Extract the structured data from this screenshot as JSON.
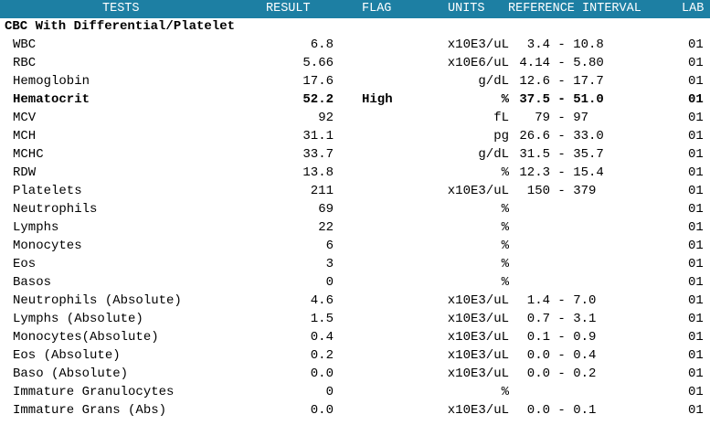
{
  "headers": {
    "tests": "TESTS",
    "result": "RESULT",
    "flag": "FLAG",
    "units": "UNITS",
    "reference": "REFERENCE INTERVAL",
    "lab": "LAB"
  },
  "section_title": "CBC With Differential/Platelet",
  "rows": [
    {
      "test": "WBC",
      "result": "6.8",
      "flag": "",
      "units": "x10E3/uL",
      "ref": "  3.4 - 10.8",
      "lab": "01"
    },
    {
      "test": "RBC",
      "result": "5.66",
      "flag": "",
      "units": "x10E6/uL",
      "ref": " 4.14 - 5.80",
      "lab": "01"
    },
    {
      "test": "Hemoglobin",
      "result": "17.6",
      "flag": "",
      "units": "g/dL",
      "ref": " 12.6 - 17.7",
      "lab": "01"
    },
    {
      "test": "Hematocrit",
      "result": "52.2",
      "flag": "High",
      "units": "%",
      "ref": " 37.5 - 51.0",
      "lab": "01"
    },
    {
      "test": "MCV",
      "result": "92",
      "flag": "",
      "units": "fL",
      "ref": "   79 - 97",
      "lab": "01"
    },
    {
      "test": "MCH",
      "result": "31.1",
      "flag": "",
      "units": "pg",
      "ref": " 26.6 - 33.0",
      "lab": "01"
    },
    {
      "test": "MCHC",
      "result": "33.7",
      "flag": "",
      "units": "g/dL",
      "ref": " 31.5 - 35.7",
      "lab": "01"
    },
    {
      "test": "RDW",
      "result": "13.8",
      "flag": "",
      "units": "%",
      "ref": " 12.3 - 15.4",
      "lab": "01"
    },
    {
      "test": "Platelets",
      "result": "211",
      "flag": "",
      "units": "x10E3/uL",
      "ref": "  150 - 379",
      "lab": "01"
    },
    {
      "test": "Neutrophils",
      "result": "69",
      "flag": "",
      "units": "%",
      "ref": "",
      "lab": "01"
    },
    {
      "test": "Lymphs",
      "result": "22",
      "flag": "",
      "units": "%",
      "ref": "",
      "lab": "01"
    },
    {
      "test": "Monocytes",
      "result": "6",
      "flag": "",
      "units": "%",
      "ref": "",
      "lab": "01"
    },
    {
      "test": "Eos",
      "result": "3",
      "flag": "",
      "units": "%",
      "ref": "",
      "lab": "01"
    },
    {
      "test": "Basos",
      "result": "0",
      "flag": "",
      "units": "%",
      "ref": "",
      "lab": "01"
    },
    {
      "test": "Neutrophils (Absolute)",
      "result": "4.6",
      "flag": "",
      "units": "x10E3/uL",
      "ref": "  1.4 - 7.0",
      "lab": "01"
    },
    {
      "test": "Lymphs (Absolute)",
      "result": "1.5",
      "flag": "",
      "units": "x10E3/uL",
      "ref": "  0.7 - 3.1",
      "lab": "01"
    },
    {
      "test": "Monocytes(Absolute)",
      "result": "0.4",
      "flag": "",
      "units": "x10E3/uL",
      "ref": "  0.1 - 0.9",
      "lab": "01"
    },
    {
      "test": "Eos (Absolute)",
      "result": "0.2",
      "flag": "",
      "units": "x10E3/uL",
      "ref": "  0.0 - 0.4",
      "lab": "01"
    },
    {
      "test": "Baso (Absolute)",
      "result": "0.0",
      "flag": "",
      "units": "x10E3/uL",
      "ref": "  0.0 - 0.2",
      "lab": "01"
    },
    {
      "test": "Immature Granulocytes",
      "result": "0",
      "flag": "",
      "units": "%",
      "ref": "",
      "lab": "01"
    },
    {
      "test": "Immature Grans (Abs)",
      "result": "0.0",
      "flag": "",
      "units": "x10E3/uL",
      "ref": "  0.0 - 0.1",
      "lab": "01"
    }
  ]
}
